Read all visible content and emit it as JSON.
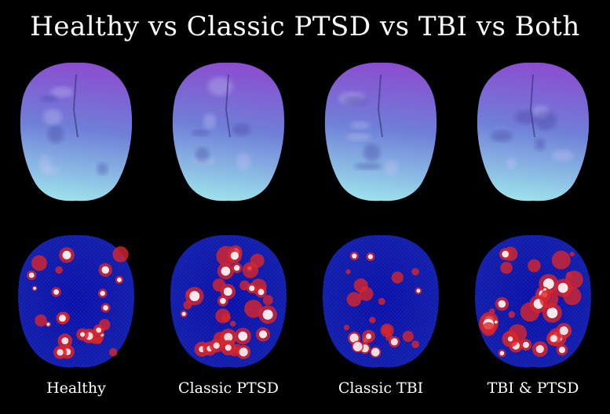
{
  "title": "Healthy vs Classic PTSD vs TBI vs Both",
  "panels": [
    {
      "label": "Healthy",
      "activity": 0.45
    },
    {
      "label": "Classic PTSD",
      "activity": 0.9
    },
    {
      "label": "Classic TBI",
      "activity": 0.35
    },
    {
      "label": "TBI & PTSD",
      "activity": 0.8
    }
  ],
  "colors": {
    "background": "#000000",
    "surface_top": "#8a4fd0",
    "surface_mid": "#6f7fd8",
    "surface_bottom": "#9fe6ec",
    "mesh": "#1e2dff",
    "hotspot": "#d8262a",
    "hotspot_core": "#ffffff"
  }
}
